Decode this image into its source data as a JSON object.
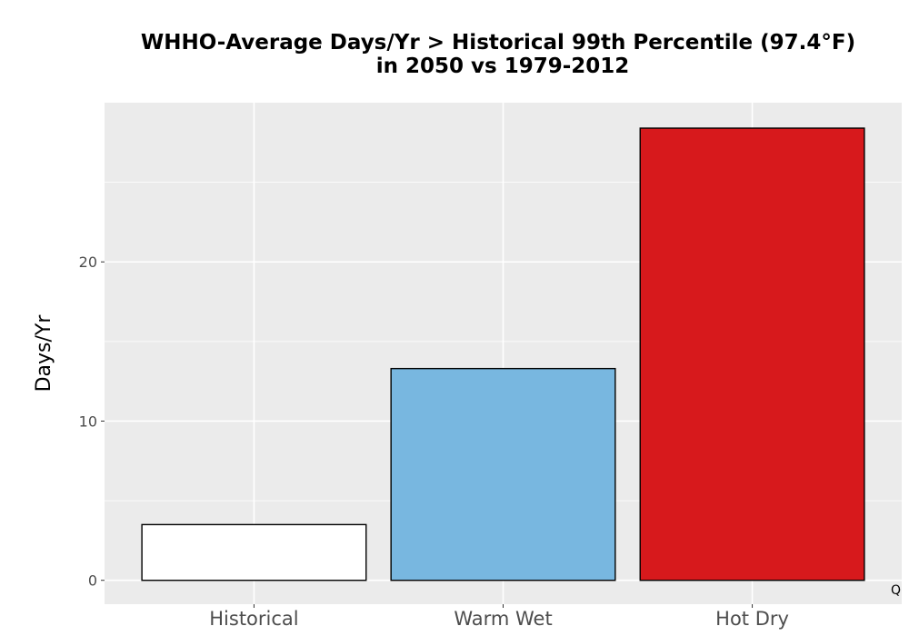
{
  "chart_data": {
    "type": "bar",
    "title_lines": [
      "WHHO-Average Days/Yr > Historical 99th Percentile (97.4°F)",
      "in 2050 vs 1979-2012"
    ],
    "xlabel": "",
    "ylabel": "Days/Yr",
    "categories": [
      "Historical",
      "Warm Wet",
      "Hot Dry"
    ],
    "values": [
      3.5,
      13.3,
      28.4
    ],
    "bar_colors": [
      "#ffffff",
      "#78b7e0",
      "#d7191c"
    ],
    "ylim": [
      -1.5,
      30.0
    ],
    "yticks": [
      0,
      10,
      20
    ],
    "ytick_labels": [
      "0",
      "10",
      "20"
    ],
    "grid": true,
    "panel_color": "#ebebeb",
    "grid_color": "#ffffff",
    "corner_mark": "Q"
  }
}
